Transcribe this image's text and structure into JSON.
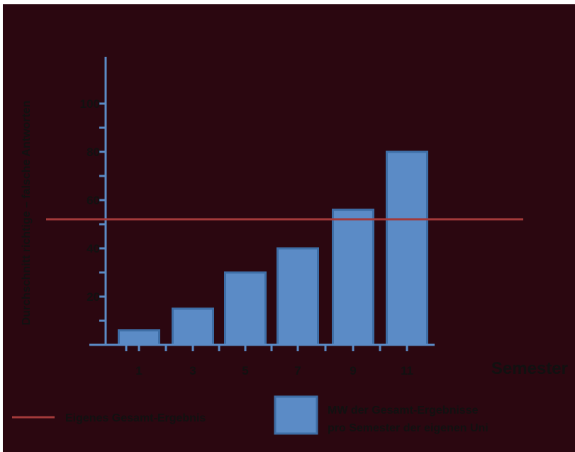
{
  "chart_data": {
    "type": "bar",
    "categories": [
      "1",
      "3",
      "5",
      "7",
      "9",
      "11"
    ],
    "values": [
      6,
      15,
      30,
      40,
      56,
      80
    ],
    "reference_line": {
      "value": 50,
      "label": "Eigenes Gesamt-Ergebnis",
      "color": "#a33a3a"
    },
    "series_label_lines": [
      "MW der Gesamt-Ergebnisse",
      "pro Semester der eigenen Uni"
    ],
    "xlabel": "Semester",
    "ylabel": "Durchschnitt richtige – falsche Antworten",
    "y_ticks": [
      20,
      40,
      60,
      80,
      100
    ],
    "ylim": [
      0,
      100
    ],
    "grid": false,
    "legend_position": "bottom",
    "colors": {
      "background": "#2b0710",
      "bar_fill": "#5b8bc6",
      "bar_stroke": "#3e6ea6",
      "axis": "#5b8bc6",
      "reference_line": "#a33a3a"
    }
  }
}
